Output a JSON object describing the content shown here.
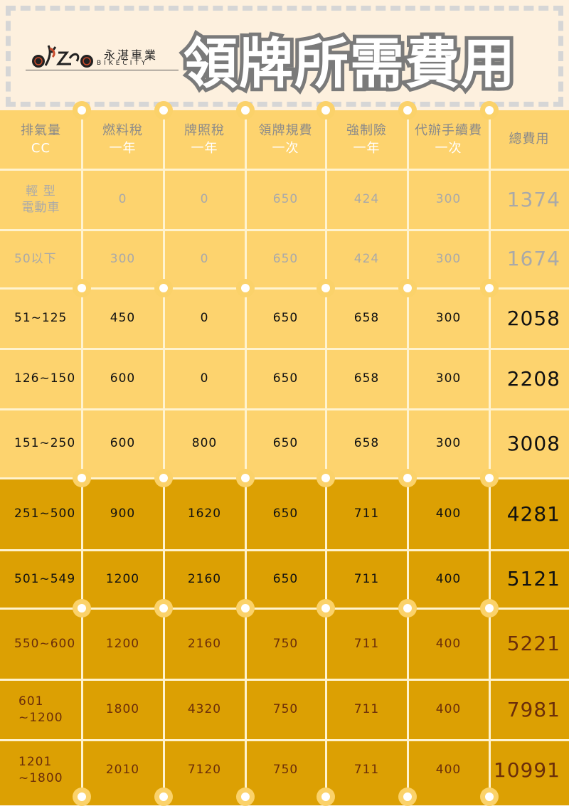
{
  "brand": {
    "name_zh": "永湛車業",
    "name_en": "BIKECITY"
  },
  "title": "領牌所需費用",
  "colors": {
    "background": "#fdf0de",
    "light_band": "#fdd36e",
    "dark_band": "#dca003",
    "muted_text": "#a9a9a9",
    "dark_text": "#111111",
    "brown_text": "#6b2e0a",
    "header_text": "#8a8a8a",
    "header_sub": "#ffffff"
  },
  "headers": [
    {
      "label": "排氣量",
      "sub": "CC"
    },
    {
      "label": "燃料稅",
      "sub": "一年"
    },
    {
      "label": "牌照稅",
      "sub": "一年"
    },
    {
      "label": "領牌規費",
      "sub": "一次"
    },
    {
      "label": "強制險",
      "sub": "一年"
    },
    {
      "label": "代辦手續費",
      "sub": "一次"
    },
    {
      "label": "總費用",
      "sub": ""
    }
  ],
  "rows": [
    {
      "cc": "輕 型\n電動車",
      "fuel": "0",
      "plate": "0",
      "license": "650",
      "insurance": "424",
      "service": "300",
      "total": "1374"
    },
    {
      "cc": "50以下",
      "fuel": "300",
      "plate": "0",
      "license": "650",
      "insurance": "424",
      "service": "300",
      "total": "1674"
    },
    {
      "cc": "51~125",
      "fuel": "450",
      "plate": "0",
      "license": "650",
      "insurance": "658",
      "service": "300",
      "total": "2058"
    },
    {
      "cc": "126~150",
      "fuel": "600",
      "plate": "0",
      "license": "650",
      "insurance": "658",
      "service": "300",
      "total": "2208"
    },
    {
      "cc": "151~250",
      "fuel": "600",
      "plate": "800",
      "license": "650",
      "insurance": "658",
      "service": "300",
      "total": "3008"
    },
    {
      "cc": "251~500",
      "fuel": "900",
      "plate": "1620",
      "license": "650",
      "insurance": "711",
      "service": "400",
      "total": "4281"
    },
    {
      "cc": "501~549",
      "fuel": "1200",
      "plate": "2160",
      "license": "650",
      "insurance": "711",
      "service": "400",
      "total": "5121"
    },
    {
      "cc": "550~600",
      "fuel": "1200",
      "plate": "2160",
      "license": "750",
      "insurance": "711",
      "service": "400",
      "total": "5221"
    },
    {
      "cc": "601\n~1200",
      "fuel": "1800",
      "plate": "4320",
      "license": "750",
      "insurance": "711",
      "service": "400",
      "total": "7981"
    },
    {
      "cc": "1201\n~1800",
      "fuel": "2010",
      "plate": "7120",
      "license": "750",
      "insurance": "711",
      "service": "400",
      "total": "10991"
    }
  ]
}
